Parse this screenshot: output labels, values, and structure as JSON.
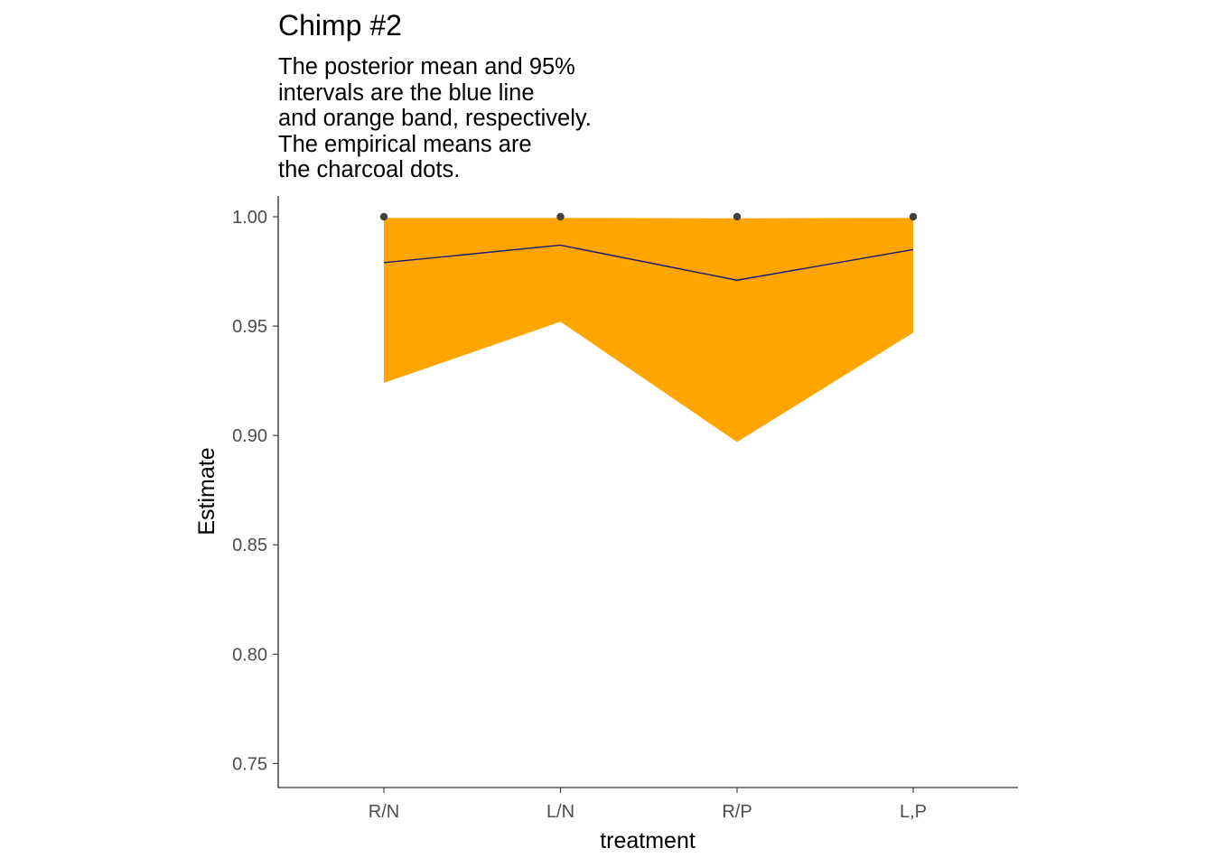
{
  "chart_data": {
    "type": "line",
    "title": "Chimp #2",
    "subtitle_lines": [
      "The posterior mean and 95%",
      "intervals are the blue line",
      "and orange band, respectively.",
      "The empirical means are",
      "the charcoal dots."
    ],
    "xlabel": "treatment",
    "ylabel": "Estimate",
    "categories": [
      "R/N",
      "L/N",
      "R/P",
      "L,P"
    ],
    "ylim": [
      0.739,
      1.0095
    ],
    "yticks": [
      0.75,
      0.8,
      0.85,
      0.9,
      0.95,
      1.0
    ],
    "ytick_labels": [
      "0.75",
      "0.80",
      "0.85",
      "0.90",
      "0.95",
      "1.00"
    ],
    "grid": false,
    "legend": "none",
    "series": [
      {
        "kind": "ribbon",
        "lower": [
          0.924,
          0.952,
          0.897,
          0.947
        ],
        "upper": [
          0.9995,
          0.9995,
          0.9993,
          0.9995
        ],
        "color": "#FFA500"
      },
      {
        "kind": "line",
        "values": [
          0.979,
          0.987,
          0.971,
          0.985
        ],
        "color": "#191970"
      },
      {
        "kind": "points",
        "values": [
          1.0,
          1.0,
          1.0,
          1.0
        ],
        "color": "#404040"
      }
    ],
    "colors": {
      "axis": "#000000",
      "tick_label": "#4d4d4d"
    }
  }
}
